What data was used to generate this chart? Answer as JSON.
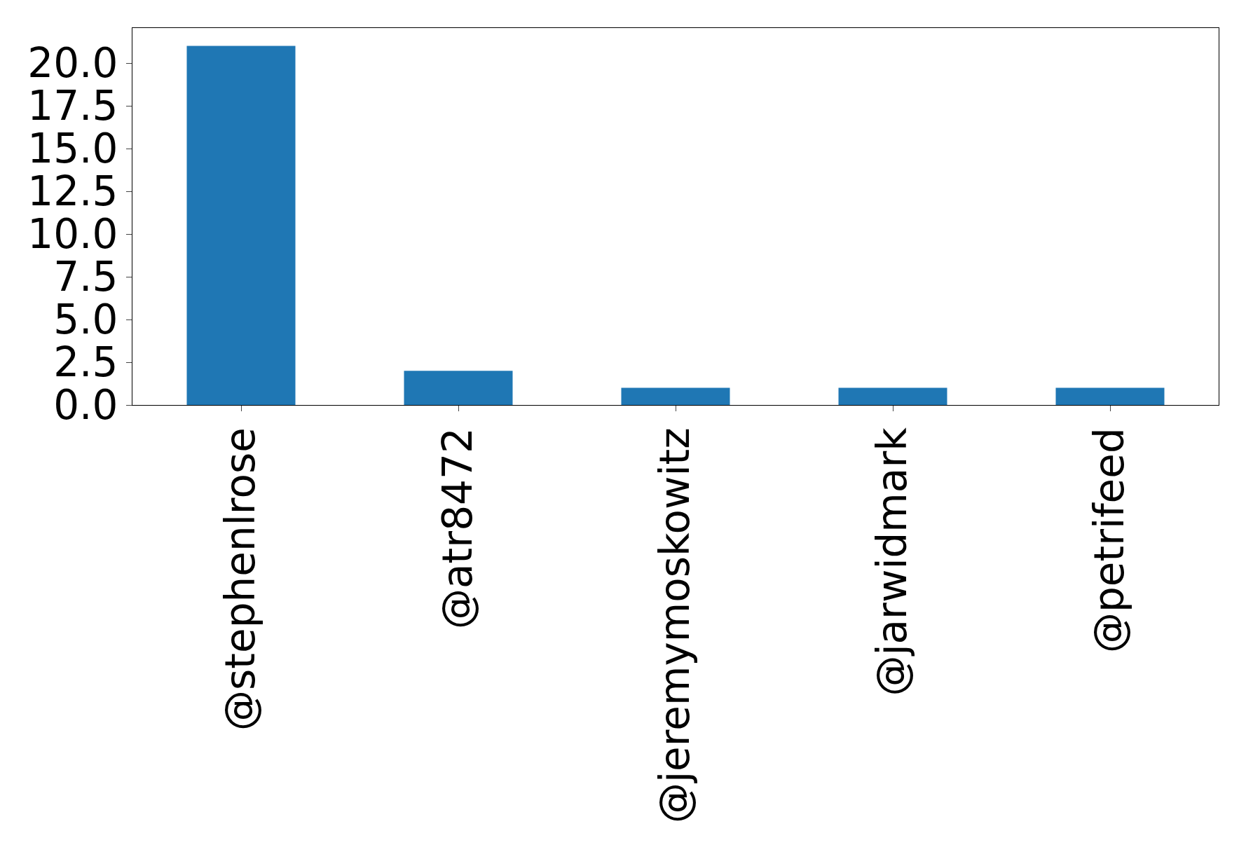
{
  "chart_data": {
    "type": "bar",
    "categories": [
      "@stephenlrose",
      "@atr8472",
      "@jeremymoskowitz",
      "@jarwidmark",
      "@petrifeed"
    ],
    "values": [
      21,
      2,
      1,
      1,
      1
    ],
    "color": "#1f77b4",
    "ylim": [
      0,
      22.05
    ],
    "yticks": [
      {
        "value": 0,
        "label": "0.0"
      },
      {
        "value": 2.5,
        "label": "2.5"
      },
      {
        "value": 5,
        "label": "5.0"
      },
      {
        "value": 7.5,
        "label": "7.5"
      },
      {
        "value": 10,
        "label": "10.0"
      },
      {
        "value": 12.5,
        "label": "12.5"
      },
      {
        "value": 15,
        "label": "15.0"
      },
      {
        "value": 17.5,
        "label": "17.5"
      },
      {
        "value": 20,
        "label": "20.0"
      }
    ],
    "legend": false
  }
}
